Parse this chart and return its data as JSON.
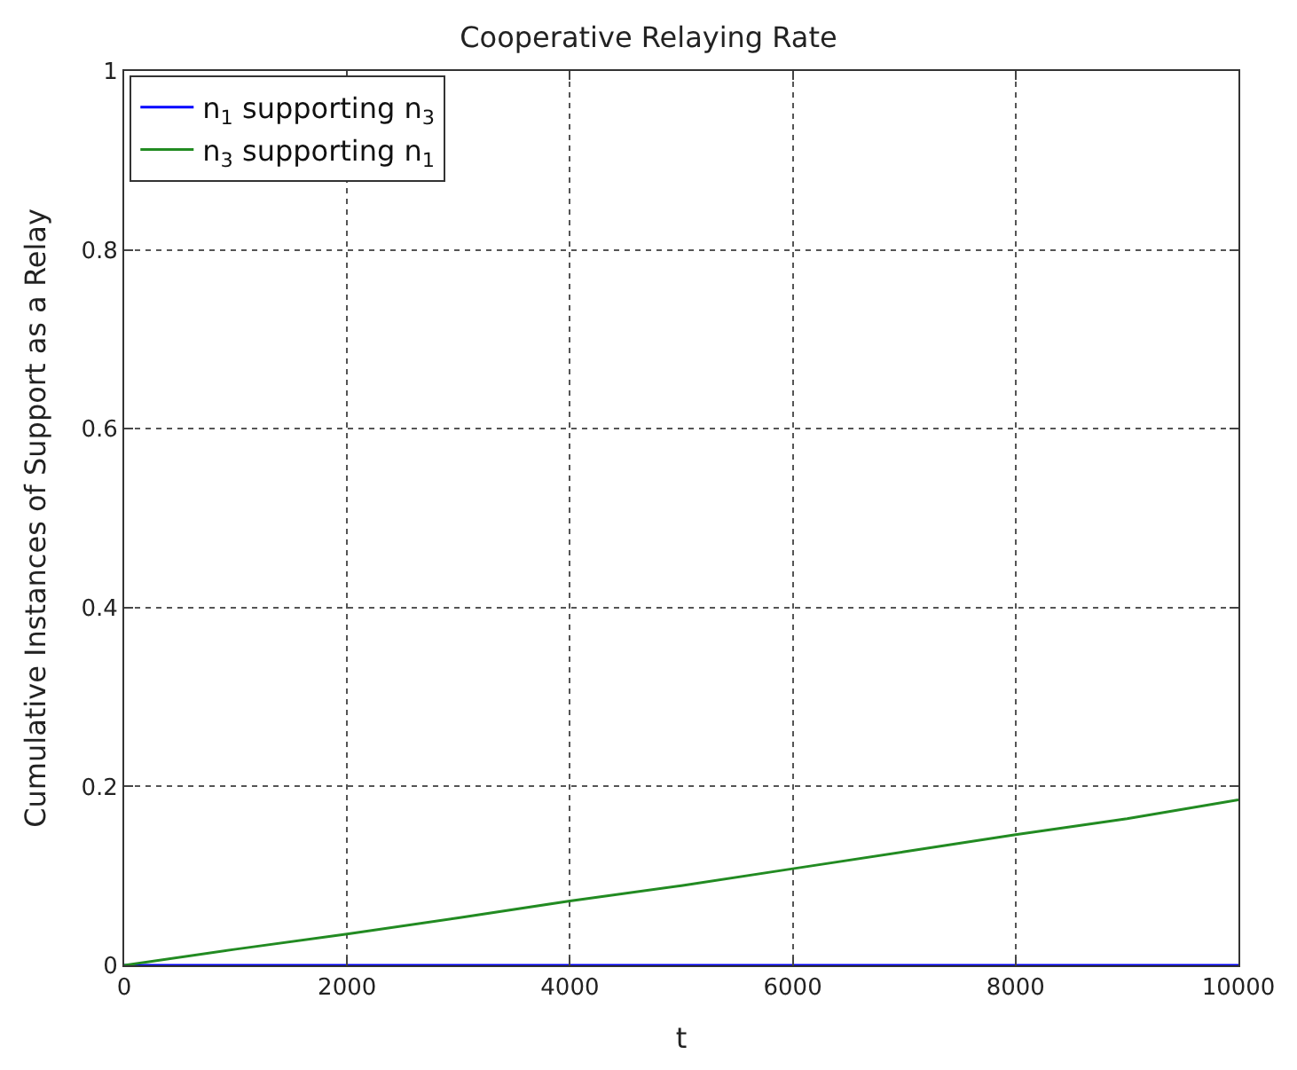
{
  "chart_data": {
    "type": "line",
    "title": "Cooperative Relaying Rate",
    "xlabel": "t",
    "ylabel": "Cumulative Instances of Support as a Relay",
    "x": [
      0,
      1000,
      2000,
      3000,
      4000,
      5000,
      6000,
      7000,
      8000,
      9000,
      10000
    ],
    "series": [
      {
        "name": "n$_{1}$ supporting n$_{3}$",
        "color": "#0000ff",
        "values": [
          0,
          0,
          0,
          0,
          0,
          0,
          0,
          0,
          0,
          0,
          0
        ]
      },
      {
        "name": "n$_{3}$ supporting n$_{1}$",
        "color": "#228b22",
        "values": [
          0,
          0.018,
          0.035,
          0.053,
          0.072,
          0.089,
          0.108,
          0.127,
          0.146,
          0.164,
          0.185
        ]
      }
    ],
    "xlim": [
      0,
      10000
    ],
    "xticks": [
      0,
      2000,
      4000,
      6000,
      8000,
      10000
    ],
    "ylim": [
      0,
      1
    ],
    "yticks": [
      0,
      0.2,
      0.4,
      0.6,
      0.8,
      1
    ],
    "grid": true,
    "legend": "top left",
    "marker": "none",
    "line_style": "solid"
  }
}
